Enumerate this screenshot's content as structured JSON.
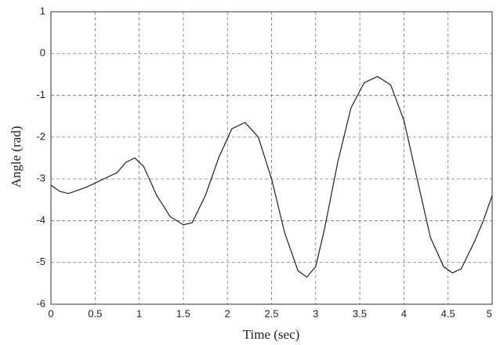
{
  "chart_data": {
    "type": "line",
    "xlabel": "Time (sec)",
    "ylabel": "Angle (rad)",
    "x": [
      0,
      0.1,
      0.2,
      0.4,
      0.6,
      0.75,
      0.85,
      0.95,
      1.05,
      1.2,
      1.35,
      1.5,
      1.6,
      1.75,
      1.9,
      2.05,
      2.2,
      2.35,
      2.5,
      2.65,
      2.8,
      2.9,
      3.0,
      3.1,
      3.25,
      3.4,
      3.55,
      3.7,
      3.85,
      4.0,
      4.15,
      4.3,
      4.45,
      4.55,
      4.65,
      4.8,
      4.9,
      5.0
    ],
    "series": [
      {
        "color": "#222222",
        "values": [
          -3.15,
          -3.3,
          -3.35,
          -3.2,
          -3.0,
          -2.85,
          -2.6,
          -2.5,
          -2.7,
          -3.4,
          -3.9,
          -4.1,
          -4.05,
          -3.4,
          -2.5,
          -1.8,
          -1.65,
          -2.0,
          -3.0,
          -4.3,
          -5.2,
          -5.35,
          -5.1,
          -4.2,
          -2.6,
          -1.3,
          -0.7,
          -0.55,
          -0.75,
          -1.6,
          -3.0,
          -4.4,
          -5.1,
          -5.25,
          -5.15,
          -4.5,
          -4.0,
          -3.4
        ]
      }
    ],
    "xlim": [
      0,
      5
    ],
    "xticks": [
      0,
      0.5,
      1,
      1.5,
      2,
      2.5,
      3,
      3.5,
      4,
      4.5,
      5
    ],
    "ylim": [
      -6,
      1
    ],
    "yticks": [
      -6,
      -5,
      -4,
      -3,
      -2,
      -1,
      0,
      1
    ],
    "grid": true
  }
}
